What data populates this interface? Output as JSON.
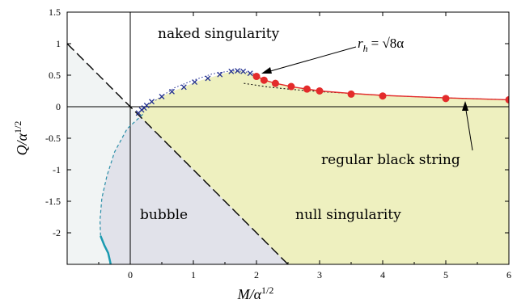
{
  "chart_data": {
    "type": "scatter",
    "xlabel": "M/α^{1/2}",
    "ylabel": "Q/α^{1/2}",
    "xlim": [
      -1,
      6
    ],
    "ylim": [
      -2.5,
      1.5
    ],
    "x_ticks": [
      0,
      1,
      2,
      3,
      4,
      5,
      6
    ],
    "x_tick_labels": [
      "0",
      "1",
      "2",
      "3",
      "4",
      "5",
      "6"
    ],
    "y_ticks": [
      1.5,
      1,
      0.5,
      0,
      -0.5,
      -1,
      -1.5,
      -2
    ],
    "y_tick_labels": [
      "1.5",
      "1",
      "0.5",
      "0",
      "-0.5",
      "-1",
      "-1.5",
      "-2"
    ],
    "grid": false,
    "colors": {
      "regular_region": "#eef0bf",
      "bubble_region": "#e1e2ea",
      "left_region": "#f1f4f4",
      "crosses": "#1f2d8f",
      "dots": "#e32b2b",
      "red_curve": "#e32b2b",
      "teal_curve": "#1a9ab0",
      "dashed_teal": "#2a8ea8"
    },
    "region_labels": {
      "naked": "naked singularity",
      "bubble": "bubble",
      "null": "null singularity",
      "regular": "regular black string"
    },
    "annotation": {
      "lhs": "r",
      "sub": "h",
      "rhs": "= √8α"
    },
    "series": [
      {
        "kind": "crosses",
        "points": [
          [
            0.13,
            -0.1
          ],
          [
            0.18,
            -0.05
          ],
          [
            0.22,
            -0.02
          ],
          [
            0.26,
            0.02
          ],
          [
            0.34,
            0.08
          ],
          [
            0.5,
            0.16
          ],
          [
            0.66,
            0.24
          ],
          [
            0.85,
            0.31
          ],
          [
            1.02,
            0.39
          ],
          [
            1.23,
            0.45
          ],
          [
            1.42,
            0.51
          ],
          [
            1.6,
            0.56
          ],
          [
            1.7,
            0.57
          ],
          [
            1.79,
            0.56
          ],
          [
            1.9,
            0.53
          ]
        ]
      },
      {
        "kind": "dots",
        "points": [
          [
            2.0,
            0.48
          ],
          [
            2.12,
            0.42
          ],
          [
            2.3,
            0.37
          ],
          [
            2.55,
            0.32
          ],
          [
            2.8,
            0.28
          ],
          [
            3.0,
            0.25
          ],
          [
            3.5,
            0.2
          ],
          [
            4.0,
            0.17
          ],
          [
            5.0,
            0.13
          ],
          [
            6.0,
            0.11
          ]
        ]
      },
      {
        "kind": "red_curve",
        "points": [
          [
            1.95,
            0.52
          ],
          [
            2.1,
            0.43
          ],
          [
            2.3,
            0.37
          ],
          [
            2.6,
            0.31
          ],
          [
            3.0,
            0.25
          ],
          [
            3.5,
            0.21
          ],
          [
            4.0,
            0.18
          ],
          [
            5.0,
            0.14
          ],
          [
            6.0,
            0.11
          ]
        ]
      },
      {
        "kind": "black_dotted",
        "points": [
          [
            1.8,
            0.37
          ],
          [
            2.2,
            0.31
          ],
          [
            2.6,
            0.27
          ],
          [
            3.0,
            0.24
          ],
          [
            3.5,
            0.21
          ],
          [
            4.0,
            0.18
          ],
          [
            5.0,
            0.14
          ],
          [
            6.0,
            0.11
          ]
        ]
      },
      {
        "kind": "blue_dotted",
        "points": [
          [
            0.4,
            0.1
          ],
          [
            0.7,
            0.3
          ],
          [
            1.0,
            0.42
          ],
          [
            1.3,
            0.52
          ],
          [
            1.6,
            0.57
          ],
          [
            1.8,
            0.56
          ],
          [
            1.95,
            0.52
          ]
        ]
      },
      {
        "kind": "dashed_teal",
        "points": [
          [
            0.2,
            -0.12
          ],
          [
            -0.05,
            -0.35
          ],
          [
            -0.25,
            -0.72
          ],
          [
            -0.37,
            -1.1
          ],
          [
            -0.45,
            -1.45
          ],
          [
            -0.48,
            -1.8
          ],
          [
            -0.47,
            -2.05
          ]
        ]
      },
      {
        "kind": "solid_teal",
        "points": [
          [
            -0.47,
            -2.05
          ],
          [
            -0.41,
            -2.2
          ],
          [
            -0.35,
            -2.32
          ],
          [
            -0.32,
            -2.45
          ],
          [
            -0.31,
            -2.5
          ]
        ]
      },
      {
        "kind": "black_dashed",
        "points": [
          [
            -1.0,
            1.0
          ],
          [
            2.5,
            -2.5
          ]
        ]
      }
    ]
  }
}
